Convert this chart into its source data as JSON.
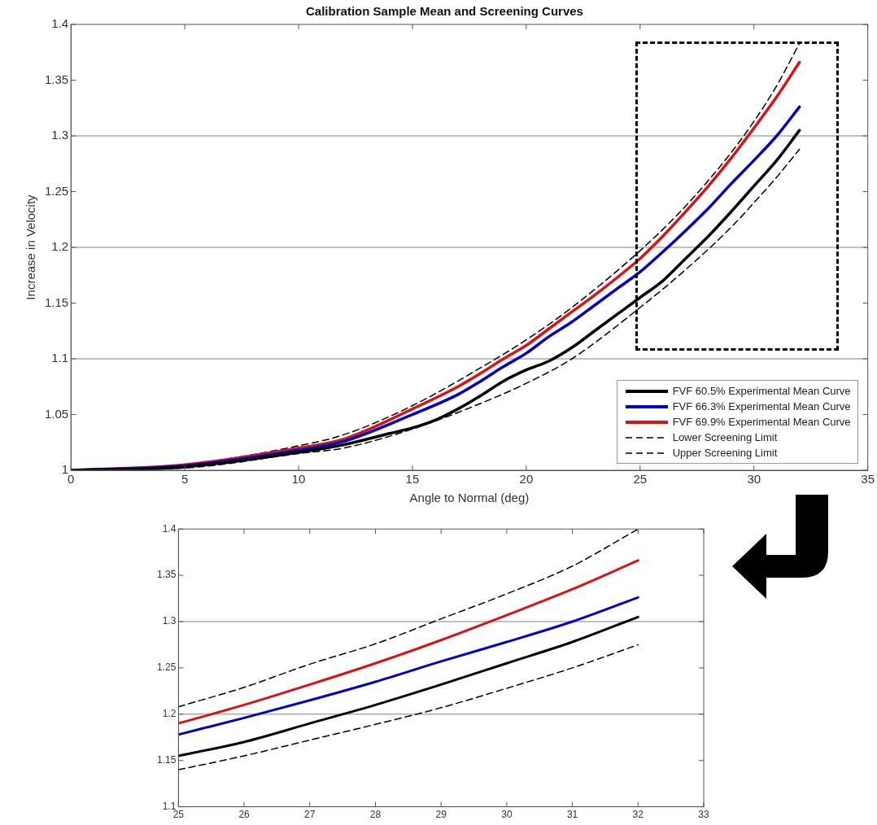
{
  "chart_data": [
    {
      "type": "line",
      "title": "Calibration Sample Mean and Screening Curves",
      "xlabel": "Angle to Normal (deg)",
      "ylabel": "Increase in Velocity",
      "xlim": [
        0,
        35
      ],
      "xticks": [
        0,
        5,
        10,
        15,
        20,
        25,
        30,
        35
      ],
      "ylim": [
        1,
        1.4
      ],
      "yticks": [
        1,
        1.05,
        1.1,
        1.15,
        1.2,
        1.25,
        1.3,
        1.35,
        1.4
      ],
      "legend": "bottom right",
      "marker": "none",
      "ref_lines": [
        {
          "axis": "y",
          "value": 1.1,
          "color": "#808080"
        },
        {
          "axis": "y",
          "value": 1.2,
          "color": "#808080"
        },
        {
          "axis": "y",
          "value": 1.3,
          "color": "#808080"
        }
      ],
      "series": [
        {
          "name": "FVF 60.5% Experimental Mean Curve",
          "color": "#000000",
          "line_style": "solid",
          "x": [
            0,
            5,
            10,
            12,
            14,
            15,
            16,
            17,
            18,
            19,
            20,
            21,
            22,
            23,
            24,
            25,
            26,
            27,
            28,
            29,
            30,
            31,
            32
          ],
          "values": [
            1,
            1.003,
            1.016,
            1.023,
            1.033,
            1.038,
            1.045,
            1.055,
            1.067,
            1.08,
            1.09,
            1.098,
            1.11,
            1.125,
            1.14,
            1.155,
            1.17,
            1.19,
            1.21,
            1.232,
            1.255,
            1.278,
            1.305
          ]
        },
        {
          "name": "FVF 66.3% Experimental Mean Curve",
          "color": "#0000cc",
          "line_style": "solid",
          "x": [
            0,
            5,
            10,
            12,
            15,
            17,
            18,
            19,
            20,
            21,
            22,
            23,
            24,
            25,
            26,
            27,
            28,
            29,
            30,
            31,
            32
          ],
          "values": [
            1,
            1.004,
            1.018,
            1.026,
            1.05,
            1.068,
            1.08,
            1.093,
            1.105,
            1.12,
            1.133,
            1.148,
            1.163,
            1.178,
            1.196,
            1.215,
            1.235,
            1.257,
            1.278,
            1.3,
            1.326
          ]
        },
        {
          "name": "FVF 69.9% Experimental Mean Curve",
          "color": "#dd1111",
          "line_style": "solid",
          "x": [
            0,
            5,
            10,
            12,
            15,
            17,
            18,
            19,
            20,
            21,
            22,
            23,
            24,
            25,
            26,
            27,
            28,
            29,
            30,
            31,
            32
          ],
          "values": [
            1,
            1.005,
            1.02,
            1.028,
            1.055,
            1.075,
            1.087,
            1.1,
            1.112,
            1.127,
            1.142,
            1.157,
            1.173,
            1.19,
            1.21,
            1.232,
            1.255,
            1.28,
            1.307,
            1.335,
            1.366
          ]
        },
        {
          "name": "Lower Screening Limit",
          "color": "#000000",
          "line_style": "dashed",
          "x": [
            0,
            5,
            10,
            12,
            15,
            18,
            20,
            22,
            25,
            27,
            29,
            30,
            31,
            32
          ],
          "values": [
            1,
            1.002,
            1.015,
            1.02,
            1.037,
            1.06,
            1.078,
            1.1,
            1.146,
            1.18,
            1.218,
            1.24,
            1.263,
            1.288
          ]
        },
        {
          "name": "Upper Screening Limit",
          "color": "#000000",
          "line_style": "dashed",
          "x": [
            0,
            5,
            10,
            12,
            15,
            18,
            20,
            22,
            25,
            27,
            29,
            30,
            31,
            32
          ],
          "values": [
            1,
            1.005,
            1.022,
            1.032,
            1.058,
            1.092,
            1.117,
            1.146,
            1.197,
            1.237,
            1.285,
            1.313,
            1.345,
            1.383
          ]
        }
      ]
    },
    {
      "type": "line",
      "xlim": [
        25,
        33
      ],
      "xticks": [
        25,
        26,
        27,
        28,
        29,
        30,
        31,
        32,
        33
      ],
      "ylim": [
        1.1,
        1.4
      ],
      "yticks": [
        1.1,
        1.15,
        1.2,
        1.25,
        1.3,
        1.35,
        1.4
      ],
      "marker": "none",
      "ref_lines": [
        {
          "axis": "y",
          "value": 1.2,
          "color": "#808080"
        },
        {
          "axis": "y",
          "value": 1.3,
          "color": "#808080"
        }
      ],
      "series": [
        {
          "color": "#000000",
          "line_style": "solid",
          "x": [
            25,
            26,
            27,
            28,
            29,
            30,
            31,
            32
          ],
          "values": [
            1.155,
            1.17,
            1.19,
            1.21,
            1.232,
            1.255,
            1.278,
            1.305
          ]
        },
        {
          "color": "#0000cc",
          "line_style": "solid",
          "x": [
            25,
            26,
            27,
            28,
            29,
            30,
            31,
            32
          ],
          "values": [
            1.178,
            1.196,
            1.215,
            1.235,
            1.257,
            1.278,
            1.3,
            1.326
          ]
        },
        {
          "color": "#dd1111",
          "line_style": "solid",
          "x": [
            25,
            26,
            27,
            28,
            29,
            30,
            31,
            32
          ],
          "values": [
            1.19,
            1.21,
            1.232,
            1.255,
            1.28,
            1.307,
            1.335,
            1.366
          ]
        },
        {
          "color": "#000000",
          "line_style": "dashed",
          "x": [
            25,
            26,
            27,
            28,
            29,
            30,
            31,
            32
          ],
          "values": [
            1.14,
            1.155,
            1.172,
            1.189,
            1.207,
            1.228,
            1.25,
            1.275
          ]
        },
        {
          "color": "#000000",
          "line_style": "dashed",
          "x": [
            25,
            26,
            27,
            28,
            29,
            30,
            31,
            32
          ],
          "values": [
            1.208,
            1.229,
            1.254,
            1.276,
            1.303,
            1.33,
            1.36,
            1.4
          ]
        }
      ]
    }
  ]
}
